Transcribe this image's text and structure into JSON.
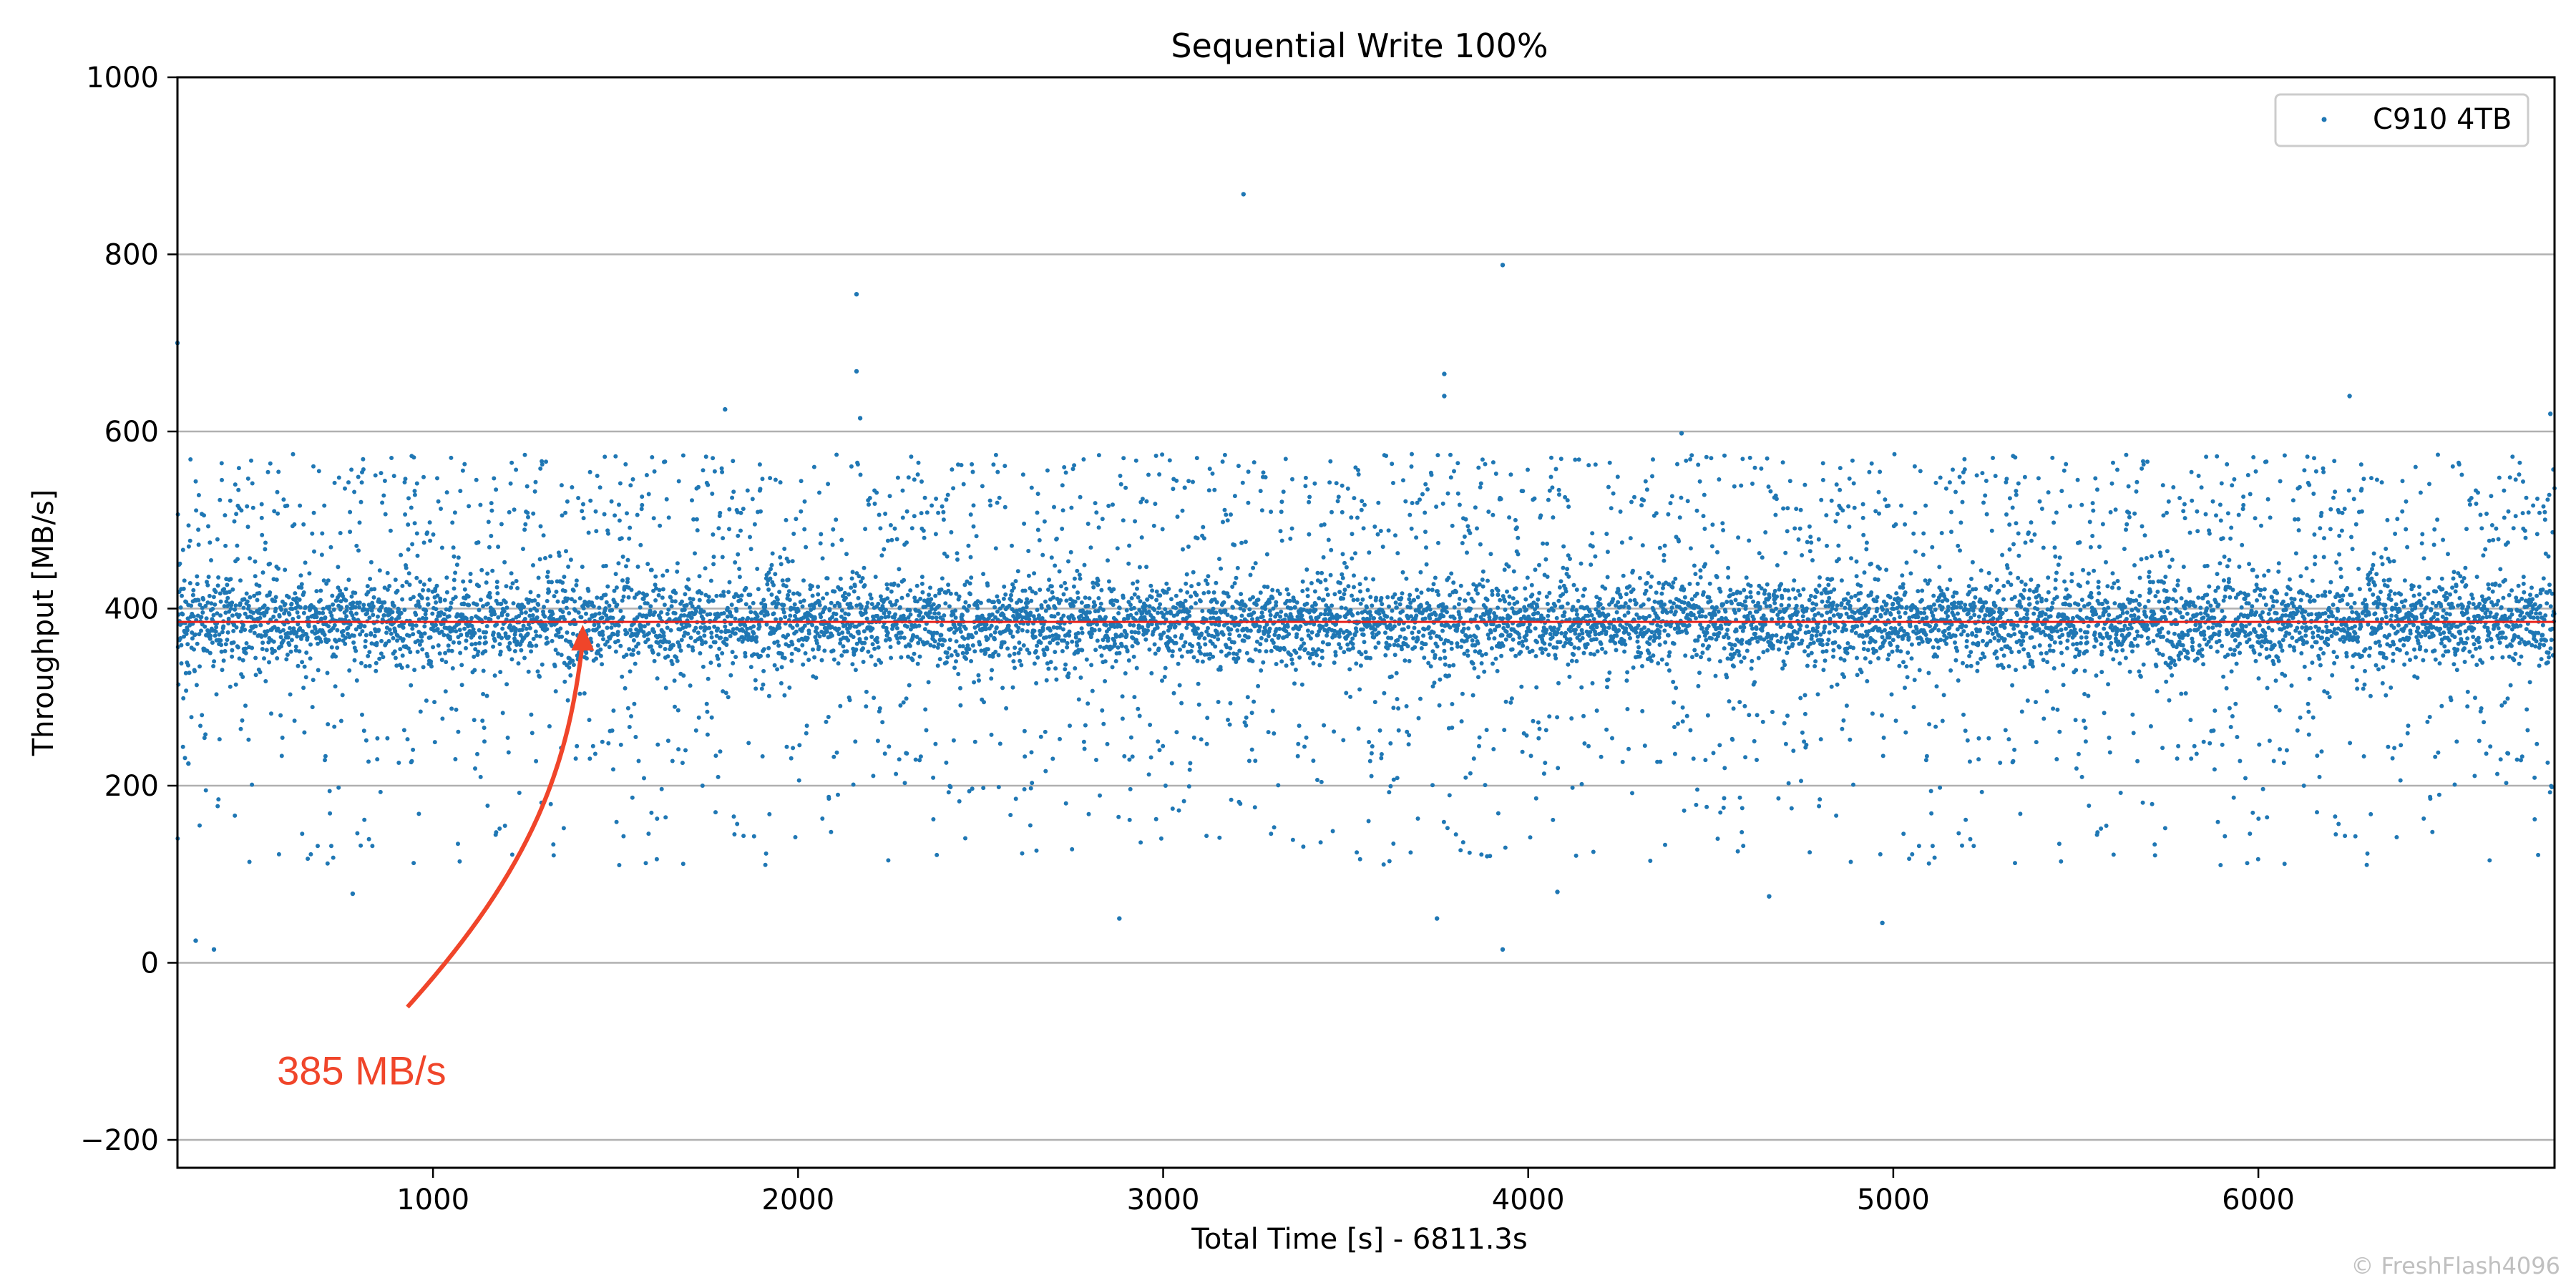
{
  "chart_data": {
    "type": "scatter",
    "title": "Sequential Write 100%",
    "xlabel": "Total Time [s] - 6811.3s",
    "ylabel": "Throughput [MB/s]",
    "xlim": [
      300,
      6811.3
    ],
    "ylim": [
      -230,
      1000
    ],
    "xticks": [
      1000,
      2000,
      3000,
      4000,
      5000,
      6000
    ],
    "xtick_labels": [
      "1000",
      "2000",
      "3000",
      "4000",
      "5000",
      "6000"
    ],
    "yticks": [
      -200,
      0,
      200,
      400,
      600,
      800,
      1000
    ],
    "ytick_labels": [
      "−200",
      "0",
      "200",
      "400",
      "600",
      "800",
      "1000"
    ],
    "grid": "horizontal",
    "legend_position": "top-right",
    "series": [
      {
        "name": "C910 4TB",
        "color": "#1f77b4",
        "marker": "point",
        "description_stats": {
          "mean": 385,
          "typical_low": 300,
          "typical_high": 480
        },
        "outliers": [
          {
            "x": 300,
            "y": 700
          },
          {
            "x": 330,
            "y": 225
          },
          {
            "x": 350,
            "y": 25
          },
          {
            "x": 400,
            "y": 15
          },
          {
            "x": 2160,
            "y": 755
          },
          {
            "x": 2160,
            "y": 668
          },
          {
            "x": 3220,
            "y": 868
          },
          {
            "x": 3930,
            "y": 788
          },
          {
            "x": 3930,
            "y": 15
          },
          {
            "x": 1800,
            "y": 625
          },
          {
            "x": 6250,
            "y": 640
          },
          {
            "x": 2880,
            "y": 50
          },
          {
            "x": 3750,
            "y": 50
          },
          {
            "x": 4970,
            "y": 45
          },
          {
            "x": 4080,
            "y": 80
          },
          {
            "x": 4660,
            "y": 75
          },
          {
            "x": 780,
            "y": 78
          },
          {
            "x": 6800,
            "y": 620
          },
          {
            "x": 3770,
            "y": 665
          },
          {
            "x": 3770,
            "y": 640
          },
          {
            "x": 4420,
            "y": 598
          },
          {
            "x": 2170,
            "y": 615
          }
        ]
      }
    ],
    "reference_line": {
      "y": 385,
      "color": "#e8231b",
      "label": "385 MB/s"
    },
    "annotation": {
      "text": "385 MB/s",
      "arrow_from": {
        "x": 930,
        "y": -50
      },
      "arrow_to": {
        "x": 1410,
        "y": 385
      },
      "color": "#f0452a"
    },
    "watermark": "© FreshFlash4096"
  }
}
